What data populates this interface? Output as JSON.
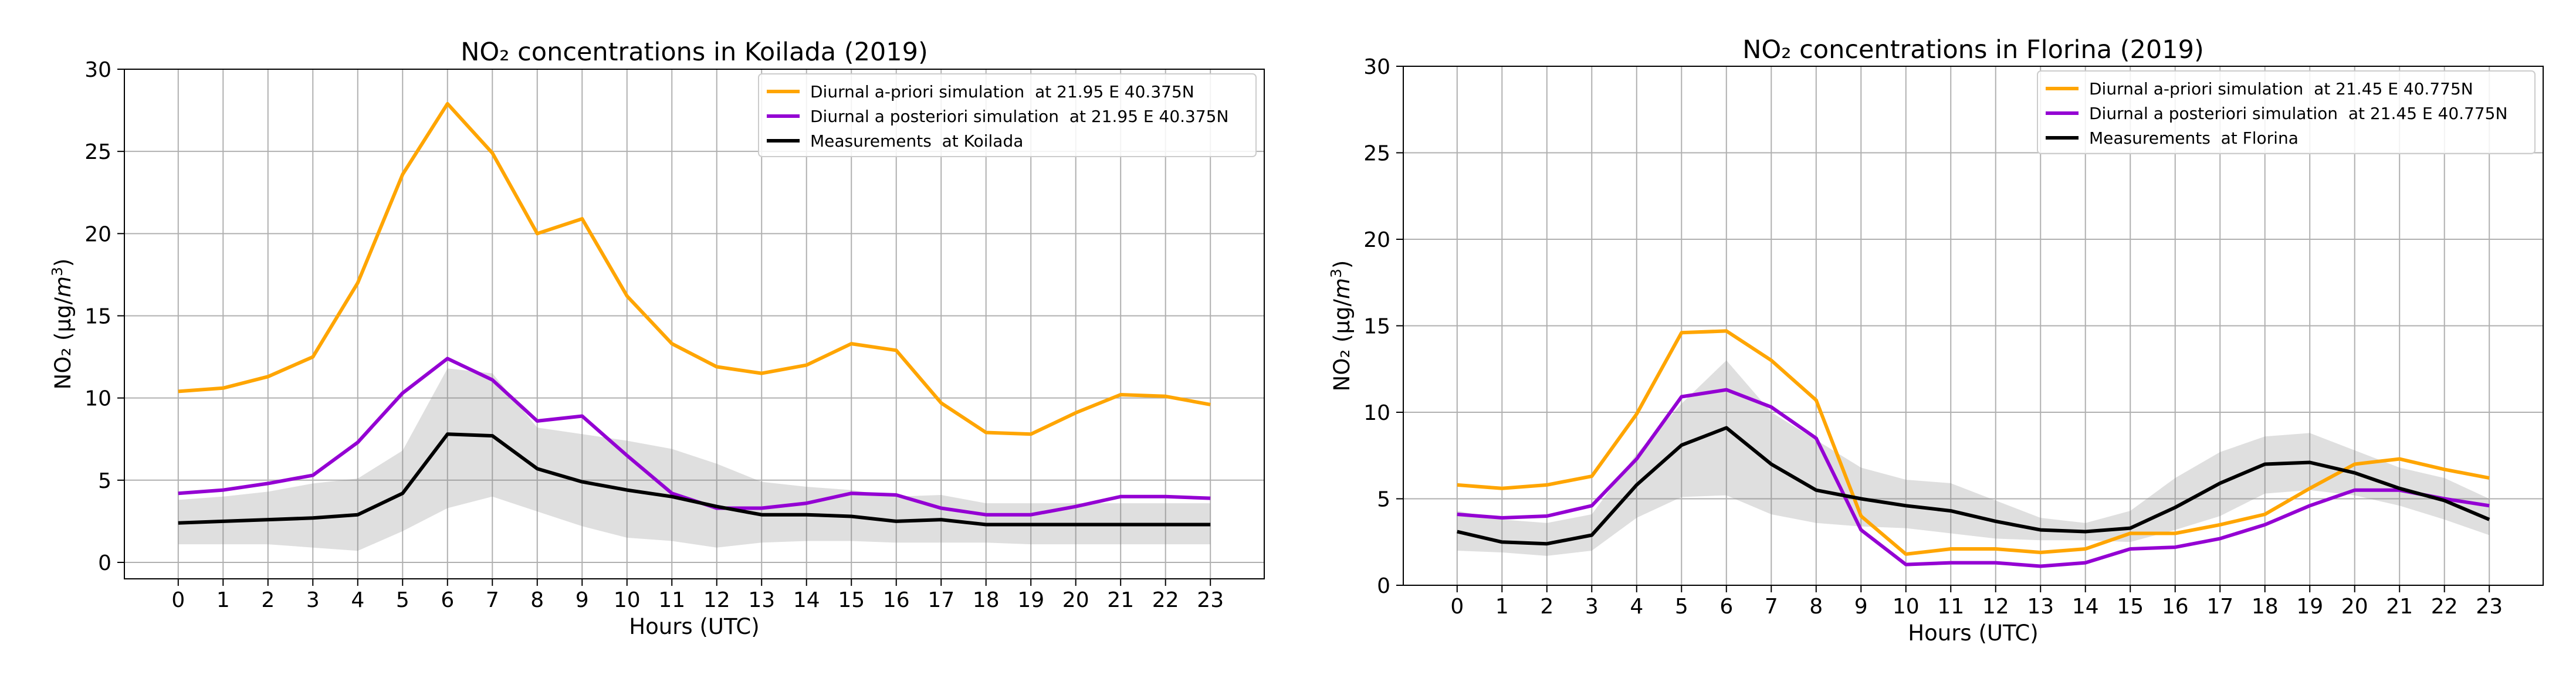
{
  "chart_data": [
    {
      "type": "line",
      "title": "NO₂ concentrations in Koilada (2019)",
      "xlabel": "Hours (UTC)",
      "ylabel": "NO₂ (μg/m³)",
      "ylabel_parts": {
        "base": "NO₂ (μg/",
        "italic": "m",
        "sup": "3",
        "close": ")"
      },
      "ylim": [
        -1,
        30
      ],
      "yticks": [
        0,
        5,
        10,
        15,
        20,
        25,
        30
      ],
      "xlim": [
        -1.2,
        24.2
      ],
      "x": [
        0,
        1,
        2,
        3,
        4,
        5,
        6,
        7,
        8,
        9,
        10,
        11,
        12,
        13,
        14,
        15,
        16,
        17,
        18,
        19,
        20,
        21,
        22,
        23
      ],
      "grid": true,
      "legend_position": "top-right",
      "series": [
        {
          "name": "Diurnal a-priori simulation  at 21.95 E 40.375N",
          "color": "#FFA500",
          "values": [
            10.4,
            10.6,
            11.3,
            12.5,
            17.0,
            23.6,
            27.9,
            24.9,
            20.0,
            20.9,
            16.2,
            13.3,
            11.9,
            11.5,
            12.0,
            13.3,
            12.9,
            9.7,
            7.9,
            7.8,
            9.1,
            10.2,
            10.1,
            9.6
          ]
        },
        {
          "name": "Diurnal a posteriori simulation  at 21.95 E 40.375N",
          "color": "#9400D3",
          "values": [
            4.2,
            4.4,
            4.8,
            5.3,
            7.3,
            10.3,
            12.4,
            11.1,
            8.6,
            8.9,
            6.5,
            4.2,
            3.3,
            3.3,
            3.6,
            4.2,
            4.1,
            3.3,
            2.9,
            2.9,
            3.4,
            4.0,
            4.0,
            3.9
          ]
        },
        {
          "name": "Measurements  at Koilada",
          "color": "#000000",
          "values": [
            2.4,
            2.5,
            2.6,
            2.7,
            2.9,
            4.2,
            7.8,
            7.7,
            5.7,
            4.9,
            4.4,
            4.0,
            3.4,
            2.9,
            2.9,
            2.8,
            2.5,
            2.6,
            2.3,
            2.3,
            2.3,
            2.3,
            2.3,
            2.3
          ]
        }
      ],
      "band": {
        "upper": [
          3.8,
          4.0,
          4.3,
          4.8,
          5.1,
          6.8,
          11.8,
          11.5,
          8.2,
          7.8,
          7.4,
          6.9,
          6.0,
          4.9,
          4.6,
          4.4,
          4.0,
          4.1,
          3.6,
          3.6,
          3.6,
          3.6,
          3.6,
          3.6
        ],
        "lower": [
          1.1,
          1.1,
          1.1,
          0.9,
          0.7,
          1.9,
          3.3,
          4.0,
          3.1,
          2.2,
          1.5,
          1.3,
          0.9,
          1.2,
          1.3,
          1.3,
          1.2,
          1.2,
          1.2,
          1.1,
          1.1,
          1.1,
          1.1,
          1.1
        ]
      }
    },
    {
      "type": "line",
      "title": "NO₂ concentrations in Florina (2019)",
      "xlabel": "Hours (UTC)",
      "ylabel": "NO₂ (μg/m³)",
      "ylabel_parts": {
        "base": "NO₂ (μg/",
        "italic": "m",
        "sup": "3",
        "close": ")"
      },
      "ylim": [
        0,
        30
      ],
      "yticks": [
        0,
        5,
        10,
        15,
        20,
        25,
        30
      ],
      "xlim": [
        -1.2,
        24.2
      ],
      "x": [
        0,
        1,
        2,
        3,
        4,
        5,
        6,
        7,
        8,
        9,
        10,
        11,
        12,
        13,
        14,
        15,
        16,
        17,
        18,
        19,
        20,
        21,
        22,
        23
      ],
      "grid": true,
      "legend_position": "top-right",
      "series": [
        {
          "name": "Diurnal a-priori simulation  at 21.45 E 40.775N",
          "color": "#FFA500",
          "values": [
            5.8,
            5.6,
            5.8,
            6.3,
            9.9,
            14.6,
            14.7,
            13.0,
            10.7,
            4.0,
            1.8,
            2.1,
            2.1,
            1.9,
            2.1,
            3.0,
            3.0,
            3.5,
            4.1,
            5.6,
            7.0,
            7.3,
            6.7,
            6.2
          ]
        },
        {
          "name": "Diurnal a posteriori simulation  at 21.45 E 40.775N",
          "color": "#9400D3",
          "values": [
            4.1,
            3.9,
            4.0,
            4.6,
            7.3,
            10.9,
            11.3,
            10.3,
            8.5,
            3.2,
            1.2,
            1.3,
            1.3,
            1.1,
            1.3,
            2.1,
            2.2,
            2.7,
            3.5,
            4.6,
            5.5,
            5.5,
            5.0,
            4.6
          ]
        },
        {
          "name": "Measurements  at Florina",
          "color": "#000000",
          "values": [
            3.1,
            2.5,
            2.4,
            2.9,
            5.8,
            8.1,
            9.1,
            7.0,
            5.5,
            5.0,
            4.6,
            4.3,
            3.7,
            3.2,
            3.1,
            3.3,
            4.5,
            5.9,
            7.0,
            7.1,
            6.5,
            5.6,
            4.9,
            3.8
          ]
        }
      ],
      "band": {
        "upper": [
          4.3,
          3.8,
          3.6,
          4.1,
          7.6,
          10.5,
          13.0,
          10.0,
          8.4,
          6.8,
          6.1,
          5.9,
          4.9,
          3.9,
          3.6,
          4.3,
          6.2,
          7.7,
          8.6,
          8.8,
          7.8,
          6.8,
          6.2,
          5.0
        ],
        "lower": [
          2.0,
          1.9,
          1.7,
          2.0,
          3.9,
          5.1,
          5.2,
          4.1,
          3.6,
          3.4,
          3.3,
          3.0,
          2.7,
          2.6,
          2.6,
          2.5,
          3.2,
          4.0,
          5.3,
          5.5,
          5.2,
          4.6,
          3.8,
          2.9
        ]
      }
    }
  ]
}
